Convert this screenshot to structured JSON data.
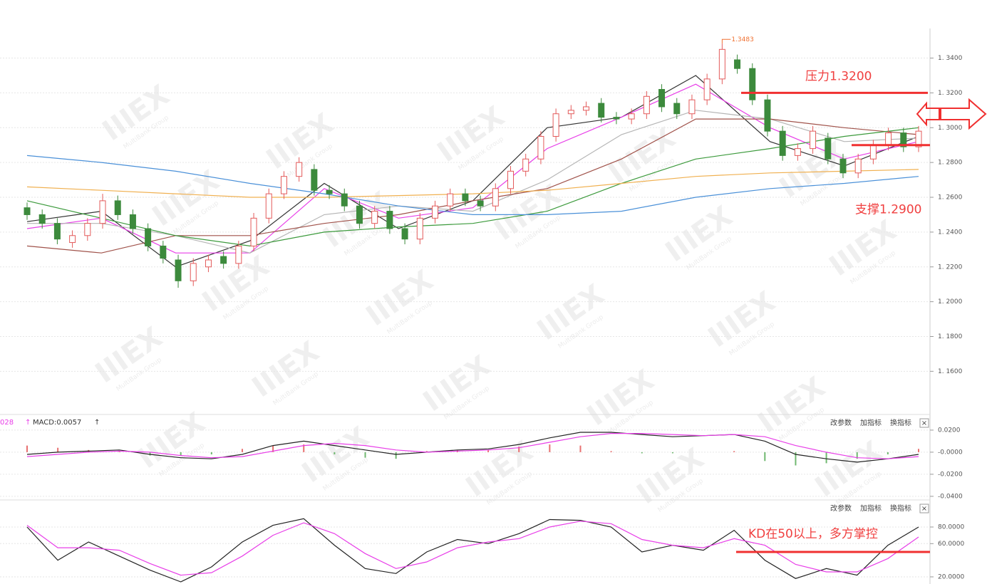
{
  "chart_data": [
    {
      "type": "candlestick",
      "up_color": "#e35a5a",
      "down_color": "#3c8a3c",
      "open": [
        1.254,
        1.25,
        1.245,
        1.234,
        1.238,
        1.245,
        1.258,
        1.25,
        1.242,
        1.232,
        1.224,
        1.212,
        1.22,
        1.226,
        1.222,
        1.232,
        1.248,
        1.262,
        1.272,
        1.276,
        1.264,
        1.262,
        1.255,
        1.245,
        1.252,
        1.242,
        1.236,
        1.248,
        1.255,
        1.262,
        1.258,
        1.255,
        1.265,
        1.275,
        1.282,
        1.295,
        1.308,
        1.31,
        1.314,
        1.306,
        1.305,
        1.308,
        1.322,
        1.314,
        1.308,
        1.316,
        1.328,
        1.339,
        1.334,
        1.316,
        1.298,
        1.284,
        1.288,
        1.294,
        1.282,
        1.274,
        1.282,
        1.29,
        1.297,
        1.289
      ],
      "high": [
        1.257,
        1.253,
        1.248,
        1.241,
        1.248,
        1.262,
        1.261,
        1.253,
        1.245,
        1.235,
        1.227,
        1.225,
        1.227,
        1.229,
        1.235,
        1.251,
        1.265,
        1.275,
        1.283,
        1.279,
        1.267,
        1.265,
        1.258,
        1.255,
        1.255,
        1.245,
        1.251,
        1.258,
        1.265,
        1.265,
        1.261,
        1.268,
        1.278,
        1.285,
        1.298,
        1.311,
        1.313,
        1.315,
        1.317,
        1.309,
        1.311,
        1.321,
        1.325,
        1.317,
        1.319,
        1.331,
        1.3483,
        1.342,
        1.337,
        1.319,
        1.301,
        1.291,
        1.301,
        1.297,
        1.285,
        1.285,
        1.293,
        1.3,
        1.3,
        1.301
      ],
      "low": [
        1.247,
        1.242,
        1.233,
        1.231,
        1.235,
        1.242,
        1.247,
        1.239,
        1.229,
        1.222,
        1.208,
        1.209,
        1.217,
        1.219,
        1.219,
        1.229,
        1.245,
        1.259,
        1.269,
        1.261,
        1.259,
        1.252,
        1.242,
        1.242,
        1.239,
        1.233,
        1.233,
        1.245,
        1.252,
        1.255,
        1.252,
        1.252,
        1.262,
        1.272,
        1.279,
        1.292,
        1.305,
        1.307,
        1.303,
        1.302,
        1.302,
        1.305,
        1.309,
        1.305,
        1.305,
        1.313,
        1.325,
        1.331,
        1.313,
        1.295,
        1.281,
        1.281,
        1.285,
        1.279,
        1.271,
        1.271,
        1.279,
        1.287,
        1.286,
        1.286
      ],
      "close": [
        1.25,
        1.245,
        1.236,
        1.238,
        1.245,
        1.258,
        1.25,
        1.242,
        1.232,
        1.225,
        1.212,
        1.222,
        1.224,
        1.222,
        1.232,
        1.248,
        1.262,
        1.272,
        1.28,
        1.264,
        1.262,
        1.255,
        1.245,
        1.252,
        1.242,
        1.236,
        1.248,
        1.255,
        1.262,
        1.258,
        1.255,
        1.265,
        1.275,
        1.282,
        1.295,
        1.308,
        1.31,
        1.312,
        1.306,
        1.305,
        1.308,
        1.318,
        1.312,
        1.308,
        1.316,
        1.328,
        1.345,
        1.334,
        1.316,
        1.298,
        1.284,
        1.288,
        1.298,
        1.282,
        1.274,
        1.282,
        1.29,
        1.297,
        1.289,
        1.298
      ],
      "series": [
        {
          "color": "#333333",
          "values": [
            1.246,
            1.252,
            1.22,
            1.235,
            1.268,
            1.242,
            1.258,
            1.3,
            1.306,
            1.33,
            1.292,
            1.278,
            1.295
          ]
        },
        {
          "color": "#e83ee8",
          "values": [
            1.242,
            1.248,
            1.228,
            1.228,
            1.265,
            1.248,
            1.254,
            1.288,
            1.306,
            1.325,
            1.3,
            1.282,
            1.292
          ]
        },
        {
          "color": "#b5b5b5",
          "values": [
            1.245,
            1.245,
            1.238,
            1.228,
            1.25,
            1.255,
            1.252,
            1.27,
            1.296,
            1.31,
            1.305,
            1.292,
            1.294
          ]
        },
        {
          "color": "#a0524a",
          "values": [
            1.232,
            1.228,
            1.238,
            1.238,
            1.245,
            1.25,
            1.258,
            1.265,
            1.282,
            1.305,
            1.305,
            1.3,
            1.296
          ]
        },
        {
          "color": "#3c9a3c",
          "values": [
            1.258,
            1.248,
            1.238,
            1.232,
            1.24,
            1.243,
            1.245,
            1.252,
            1.268,
            1.282,
            1.288,
            1.295,
            1.3
          ]
        },
        {
          "color": "#f0b050",
          "values": [
            1.266,
            1.264,
            1.262,
            1.26,
            1.26,
            1.261,
            1.262,
            1.264,
            1.268,
            1.272,
            1.274,
            1.275,
            1.276
          ]
        },
        {
          "color": "#4a90d8",
          "values": [
            1.284,
            1.28,
            1.275,
            1.268,
            1.262,
            1.255,
            1.25,
            1.25,
            1.252,
            1.26,
            1.265,
            1.268,
            1.272
          ]
        }
      ],
      "ylim": [
        1.136,
        1.357
      ],
      "yticks": [
        {
          "value": 1.34,
          "label": "1. 3400"
        },
        {
          "value": 1.32,
          "label": "1. 3200"
        },
        {
          "value": 1.3,
          "label": "1. 3000"
        },
        {
          "value": 1.28,
          "label": "1. 2800"
        },
        {
          "value": 1.26,
          "label": "1. 2600"
        },
        {
          "value": 1.24,
          "label": "1. 2400"
        },
        {
          "value": 1.22,
          "label": "1. 2200"
        },
        {
          "value": 1.2,
          "label": "1. 2000"
        },
        {
          "value": 1.18,
          "label": "1. 1800"
        },
        {
          "value": 1.16,
          "label": "1. 1600"
        }
      ],
      "grid": true,
      "max_high": 1.3483,
      "resistance": {
        "value": 1.32,
        "label": "压力1.3200"
      },
      "support": {
        "value": 1.29,
        "label": "支撑1.2900"
      },
      "watermark": "IIIEX",
      "watermark_sub": "MultiBank Group"
    },
    {
      "type": "macd",
      "header": [
        "028",
        "MACD:0.0057"
      ],
      "toolbar": [
        "改参数",
        "加指标",
        "换指标",
        "×"
      ],
      "series": [
        {
          "color": "#222222",
          "values": [
            -0.002,
            0.0,
            0.001,
            0.002,
            -0.002,
            -0.005,
            -0.006,
            -0.002,
            0.006,
            0.01,
            0.006,
            0.002,
            -0.002,
            0.0,
            0.002,
            0.003,
            0.007,
            0.013,
            0.018,
            0.018,
            0.016,
            0.014,
            0.015,
            0.016,
            0.01,
            -0.002,
            -0.006,
            -0.009,
            -0.006,
            -0.002
          ]
        },
        {
          "color": "#e83ee8",
          "values": [
            -0.004,
            -0.002,
            0.0,
            0.001,
            0.0,
            -0.003,
            -0.005,
            -0.004,
            0.001,
            0.006,
            0.008,
            0.006,
            0.002,
            0.0,
            0.001,
            0.002,
            0.004,
            0.009,
            0.014,
            0.017,
            0.017,
            0.016,
            0.015,
            0.016,
            0.014,
            0.006,
            0.0,
            -0.005,
            -0.006,
            -0.004
          ]
        }
      ],
      "histogram": [
        0.006,
        0.004,
        0.002,
        0.001,
        -0.003,
        -0.003,
        -0.002,
        0.003,
        0.006,
        0.007,
        -0.002,
        -0.005,
        -0.006,
        0.001,
        0.002,
        0.002,
        0.005,
        0.007,
        0.006,
        0.001,
        -0.001,
        -0.001,
        0.0,
        0.001,
        -0.008,
        -0.012,
        -0.01,
        -0.006,
        -0.002,
        0.003
      ],
      "up_color": "#e87070",
      "down_color": "#70b870",
      "ylim": [
        -0.042,
        0.0335
      ],
      "yticks": [
        {
          "value": 0.02,
          "label": "0.0200"
        },
        {
          "value": 0,
          "label": "-0.0000"
        },
        {
          "value": -0.02,
          "label": "-0.0200"
        },
        {
          "value": -0.04,
          "label": "-0.0400"
        }
      ]
    },
    {
      "type": "line",
      "toolbar": [
        "改参数",
        "加指标",
        "换指标",
        "×"
      ],
      "series": [
        {
          "color": "#222222",
          "values": [
            80,
            40,
            62,
            45,
            28,
            14,
            32,
            62,
            82,
            90,
            58,
            30,
            24,
            50,
            65,
            60,
            72,
            89,
            88,
            80,
            50,
            58,
            52,
            76,
            40,
            18,
            30,
            22,
            58,
            80
          ]
        },
        {
          "color": "#e83ee8",
          "values": [
            82,
            55,
            55,
            52,
            36,
            22,
            25,
            45,
            70,
            85,
            72,
            48,
            30,
            38,
            55,
            62,
            66,
            80,
            87,
            84,
            65,
            58,
            55,
            66,
            58,
            35,
            26,
            26,
            42,
            68
          ]
        }
      ],
      "ylim": [
        11.4,
        111.7
      ],
      "yticks": [
        {
          "value": 80,
          "label": "80.0000"
        },
        {
          "value": 60,
          "label": "60.0000"
        },
        {
          "value": 20,
          "label": "20.0000"
        }
      ],
      "annotation": {
        "value": 50,
        "label": "KD在50以上，多方掌控"
      }
    }
  ]
}
